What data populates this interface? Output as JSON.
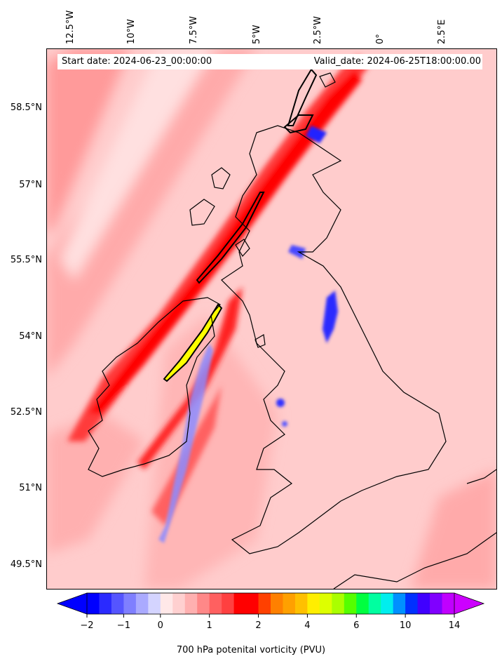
{
  "header": {
    "start_date": "Start date: 2024-06-23_00:00:00",
    "valid_date": "Valid_date: 2024-06-25T18:00:00.00"
  },
  "axes": {
    "lon_labels": [
      "12.5°W",
      "10°W",
      "7.5°W",
      "5°W",
      "2.5°W",
      "0°",
      "2.5°E"
    ],
    "lat_labels": [
      "58.5°N",
      "57°N",
      "55.5°N",
      "54°N",
      "52.5°N",
      "51°N",
      "49.5°N"
    ]
  },
  "colorbar": {
    "label": "700 hPa potenital vorticity (PVU)",
    "tick_labels": [
      "−2",
      "−1",
      "0",
      "1",
      "2",
      "4",
      "6",
      "10",
      "14"
    ],
    "colors": [
      "#0000ff",
      "#2a2aff",
      "#5555ff",
      "#7f7fff",
      "#aaaaff",
      "#d4d4ff",
      "#ffe8e8",
      "#ffd0d0",
      "#ffb0b0",
      "#ff8888",
      "#ff6060",
      "#ff4040",
      "#ff0000",
      "#ff0000",
      "#ff4000",
      "#ff8000",
      "#ffa000",
      "#ffc000",
      "#ffee00",
      "#ddff00",
      "#aaff00",
      "#55ff00",
      "#00ff40",
      "#00ffa0",
      "#00eeee",
      "#0090ff",
      "#0030ff",
      "#4000ff",
      "#8000ff",
      "#c000ff"
    ],
    "under_color": "#0000ff",
    "over_color": "#cc00ff"
  },
  "chart_data": {
    "type": "heatmap",
    "title": "",
    "xlabel": "",
    "ylabel": "",
    "colorbar_label": "700 hPa potenital vorticity (PVU)",
    "colorbar_ticks": [
      -2,
      -1,
      0,
      1,
      2,
      4,
      6,
      10,
      14
    ],
    "longitude_ticks": [
      -12.5,
      -10,
      -7.5,
      -5,
      -2.5,
      0,
      2.5
    ],
    "latitude_ticks": [
      58.5,
      57,
      55.5,
      54,
      52.5,
      51,
      49.5
    ]
  }
}
